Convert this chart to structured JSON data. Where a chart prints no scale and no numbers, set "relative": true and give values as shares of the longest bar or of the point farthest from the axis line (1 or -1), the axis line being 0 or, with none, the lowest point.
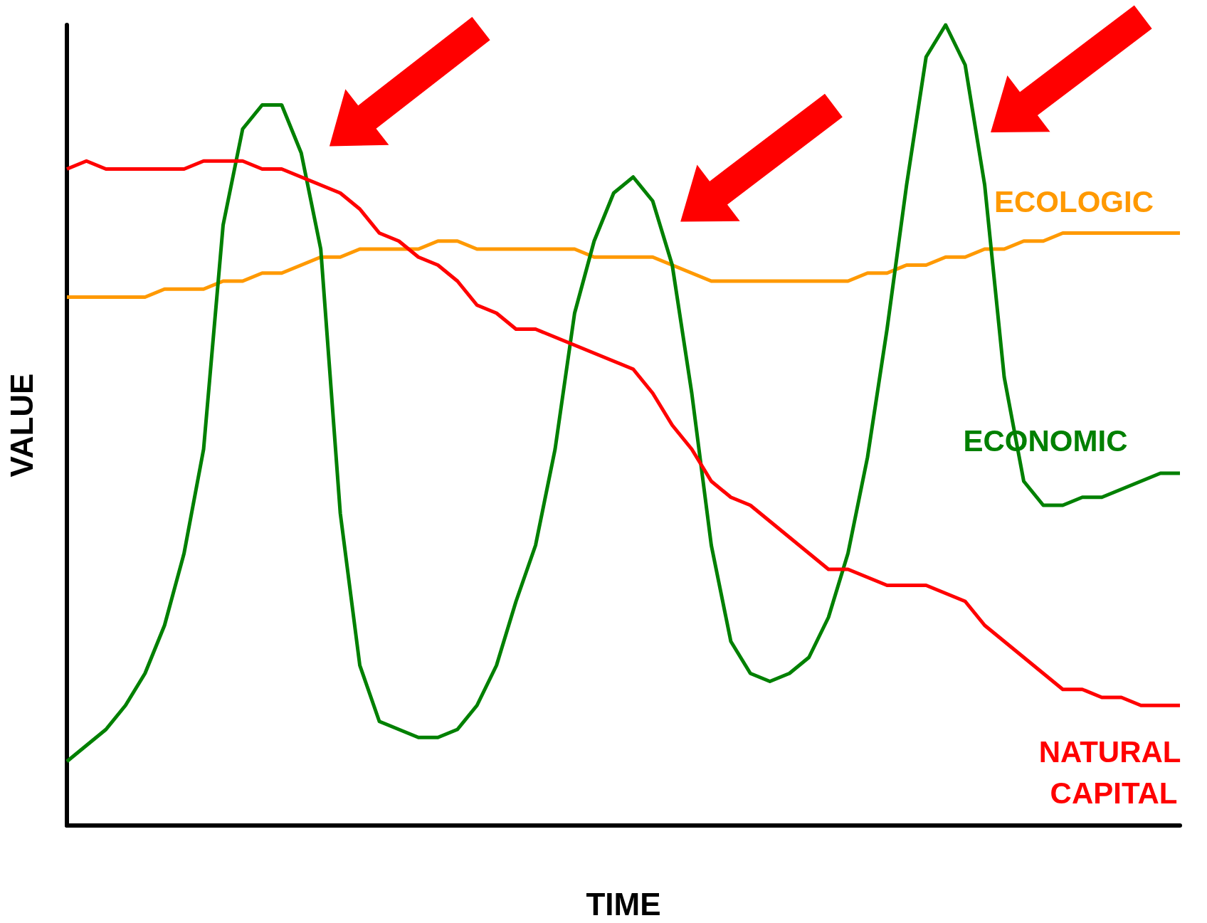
{
  "chart_data": {
    "type": "line",
    "relative": true,
    "xlabel": "TIME",
    "ylabel": "VALUE",
    "categories": [
      null,
      null,
      null,
      null,
      null,
      null,
      null,
      null,
      null,
      null,
      null,
      null,
      null,
      null,
      null,
      null,
      null,
      null,
      null,
      null,
      null,
      null,
      null,
      null,
      null,
      null,
      null,
      null,
      null,
      null,
      null,
      null,
      null,
      null,
      null,
      null,
      null,
      null,
      null,
      null,
      null,
      null,
      null,
      null,
      null,
      null,
      null,
      null,
      null,
      null,
      null,
      null,
      null,
      null,
      null,
      null,
      null,
      null
    ],
    "series": [
      {
        "name": "ECOLOGIC",
        "color": "#ff9900",
        "values": [
          0.66,
          0.66,
          0.66,
          0.66,
          0.66,
          0.67,
          0.67,
          0.67,
          0.68,
          0.68,
          0.69,
          0.69,
          0.7,
          0.71,
          0.71,
          0.72,
          0.72,
          0.72,
          0.72,
          0.73,
          0.73,
          0.72,
          0.72,
          0.72,
          0.72,
          0.72,
          0.72,
          0.71,
          0.71,
          0.71,
          0.71,
          0.7,
          0.69,
          0.68,
          0.68,
          0.68,
          0.68,
          0.68,
          0.68,
          0.68,
          0.68,
          0.69,
          0.69,
          0.7,
          0.7,
          0.71,
          0.71,
          0.72,
          0.72,
          0.73,
          0.73,
          0.74,
          0.74,
          0.74,
          0.74,
          0.74,
          0.74,
          0.74
        ]
      },
      {
        "name": "ECONOMIC",
        "color": "#008000",
        "values": [
          0.08,
          0.1,
          0.12,
          0.15,
          0.19,
          0.25,
          0.34,
          0.47,
          0.75,
          0.87,
          0.9,
          0.9,
          0.84,
          0.72,
          0.39,
          0.2,
          0.13,
          0.12,
          0.11,
          0.11,
          0.12,
          0.15,
          0.2,
          0.28,
          0.35,
          0.47,
          0.64,
          0.73,
          0.79,
          0.81,
          0.78,
          0.7,
          0.54,
          0.35,
          0.23,
          0.19,
          0.18,
          0.19,
          0.21,
          0.26,
          0.34,
          0.46,
          0.62,
          0.8,
          0.96,
          1,
          0.95,
          0.8,
          0.56,
          0.43,
          0.4,
          0.4,
          0.41,
          0.41,
          0.42,
          0.43,
          0.44,
          0.44
        ]
      },
      {
        "name": "NATURAL CAPITAL",
        "color": "#ff0000",
        "values": [
          0.82,
          0.83,
          0.82,
          0.82,
          0.82,
          0.82,
          0.82,
          0.83,
          0.83,
          0.83,
          0.82,
          0.82,
          0.81,
          0.8,
          0.79,
          0.77,
          0.74,
          0.73,
          0.71,
          0.7,
          0.68,
          0.65,
          0.64,
          0.62,
          0.62,
          0.61,
          0.6,
          0.59,
          0.58,
          0.57,
          0.54,
          0.5,
          0.47,
          0.43,
          0.41,
          0.4,
          0.38,
          0.36,
          0.34,
          0.32,
          0.32,
          0.31,
          0.3,
          0.3,
          0.3,
          0.29,
          0.28,
          0.25,
          0.23,
          0.21,
          0.19,
          0.17,
          0.17,
          0.16,
          0.16,
          0.15,
          0.15,
          0.15
        ]
      }
    ]
  }
}
